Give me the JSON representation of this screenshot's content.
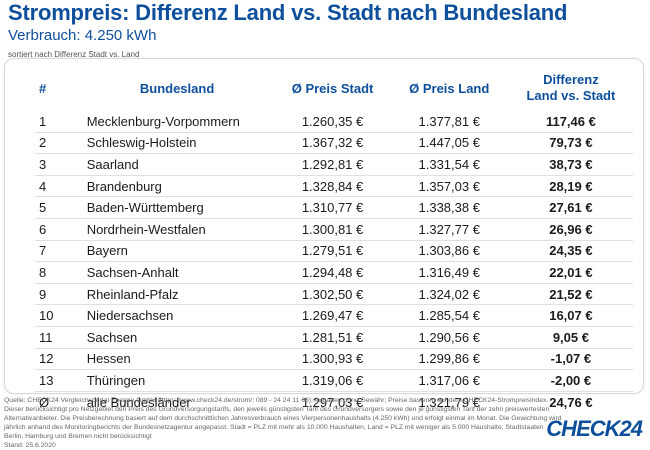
{
  "header": {
    "title": "Strompreis: Differenz Land vs. Stadt nach Bundesland",
    "subtitle": "Verbrauch: 4.250 kWh",
    "note": "sortiert nach Differenz Stadt vs. Land"
  },
  "table": {
    "columns": [
      "#",
      "Bundesland",
      "Ø Preis Stadt",
      "Ø Preis Land",
      "Differenz\nLand vs. Stadt"
    ],
    "rows": [
      {
        "num": "1",
        "land": "Mecklenburg-Vorpommern",
        "stadt": "1.260,35 €",
        "landp": "1.377,81 €",
        "diff": "117,46 €"
      },
      {
        "num": "2",
        "land": "Schleswig-Holstein",
        "stadt": "1.367,32 €",
        "landp": "1.447,05 €",
        "diff": "79,73 €"
      },
      {
        "num": "3",
        "land": "Saarland",
        "stadt": "1.292,81 €",
        "landp": "1.331,54 €",
        "diff": "38,73 €"
      },
      {
        "num": "4",
        "land": "Brandenburg",
        "stadt": "1.328,84 €",
        "landp": "1.357,03 €",
        "diff": "28,19 €"
      },
      {
        "num": "5",
        "land": "Baden-Württemberg",
        "stadt": "1.310,77 €",
        "landp": "1.338,38 €",
        "diff": "27,61 €"
      },
      {
        "num": "6",
        "land": "Nordrhein-Westfalen",
        "stadt": "1.300,81 €",
        "landp": "1.327,77 €",
        "diff": "26,96 €"
      },
      {
        "num": "7",
        "land": "Bayern",
        "stadt": "1.279,51 €",
        "landp": "1.303,86 €",
        "diff": "24,35 €"
      },
      {
        "num": "8",
        "land": "Sachsen-Anhalt",
        "stadt": "1.294,48 €",
        "landp": "1.316,49 €",
        "diff": "22,01 €"
      },
      {
        "num": "9",
        "land": "Rheinland-Pfalz",
        "stadt": "1.302,50 €",
        "landp": "1.324,02 €",
        "diff": "21,52 €"
      },
      {
        "num": "10",
        "land": "Niedersachsen",
        "stadt": "1.269,47 €",
        "landp": "1.285,54 €",
        "diff": "16,07 €"
      },
      {
        "num": "11",
        "land": "Sachsen",
        "stadt": "1.281,51 €",
        "landp": "1.290,56 €",
        "diff": "9,05 €"
      },
      {
        "num": "12",
        "land": "Hessen",
        "stadt": "1.300,93 €",
        "landp": "1.299,86 €",
        "diff": "-1,07 €"
      },
      {
        "num": "13",
        "land": "Thüringen",
        "stadt": "1.319,06 €",
        "landp": "1.317,06 €",
        "diff": "-2,00 €"
      },
      {
        "num": "Ø",
        "land": "alle Bundesländer",
        "stadt": "1.297,03 €",
        "landp": "1.321,79 €",
        "diff": "24,76 €"
      }
    ]
  },
  "footer": {
    "text": "Quelle: CHECK24 Vergleichsportal Energie GmbH (https://www.check24.de/strom/; 089 - 24 24 11 66); Angaben ohne Gewähr; Preise basieren auf dem CHECK24-Strompreisindex. Dieser berücksichtigt pro Netzgebiet den Preis des Grundversorgungstarifs, den jeweils günstigsten Tarif des Grundversorgers sowie den je günstigsten Tarif der zehn preiswertesten Alternativanbieter. Die Preisberechnung basiert auf dem durchschnittlichen Jahresverbrauch eines Vierpersonenhaushalts (4.250 kWh) und erfolgt einmal im Monat. Die Gewichtung wird jährlich anhand des Monitoringberichts der Bundesnetzagentur angepasst. Stadt = PLZ mit mehr als 10.000 Haushalten, Land = PLZ mit weniger als 5.000 Haushalte; Stadtstaaten Berlin, Hamburg und Bremen nicht berücksichtigt",
    "date": "Stand: 25.6.2020"
  },
  "brand": {
    "logo_text": "CHECK24",
    "color": "#0e4f9c"
  }
}
